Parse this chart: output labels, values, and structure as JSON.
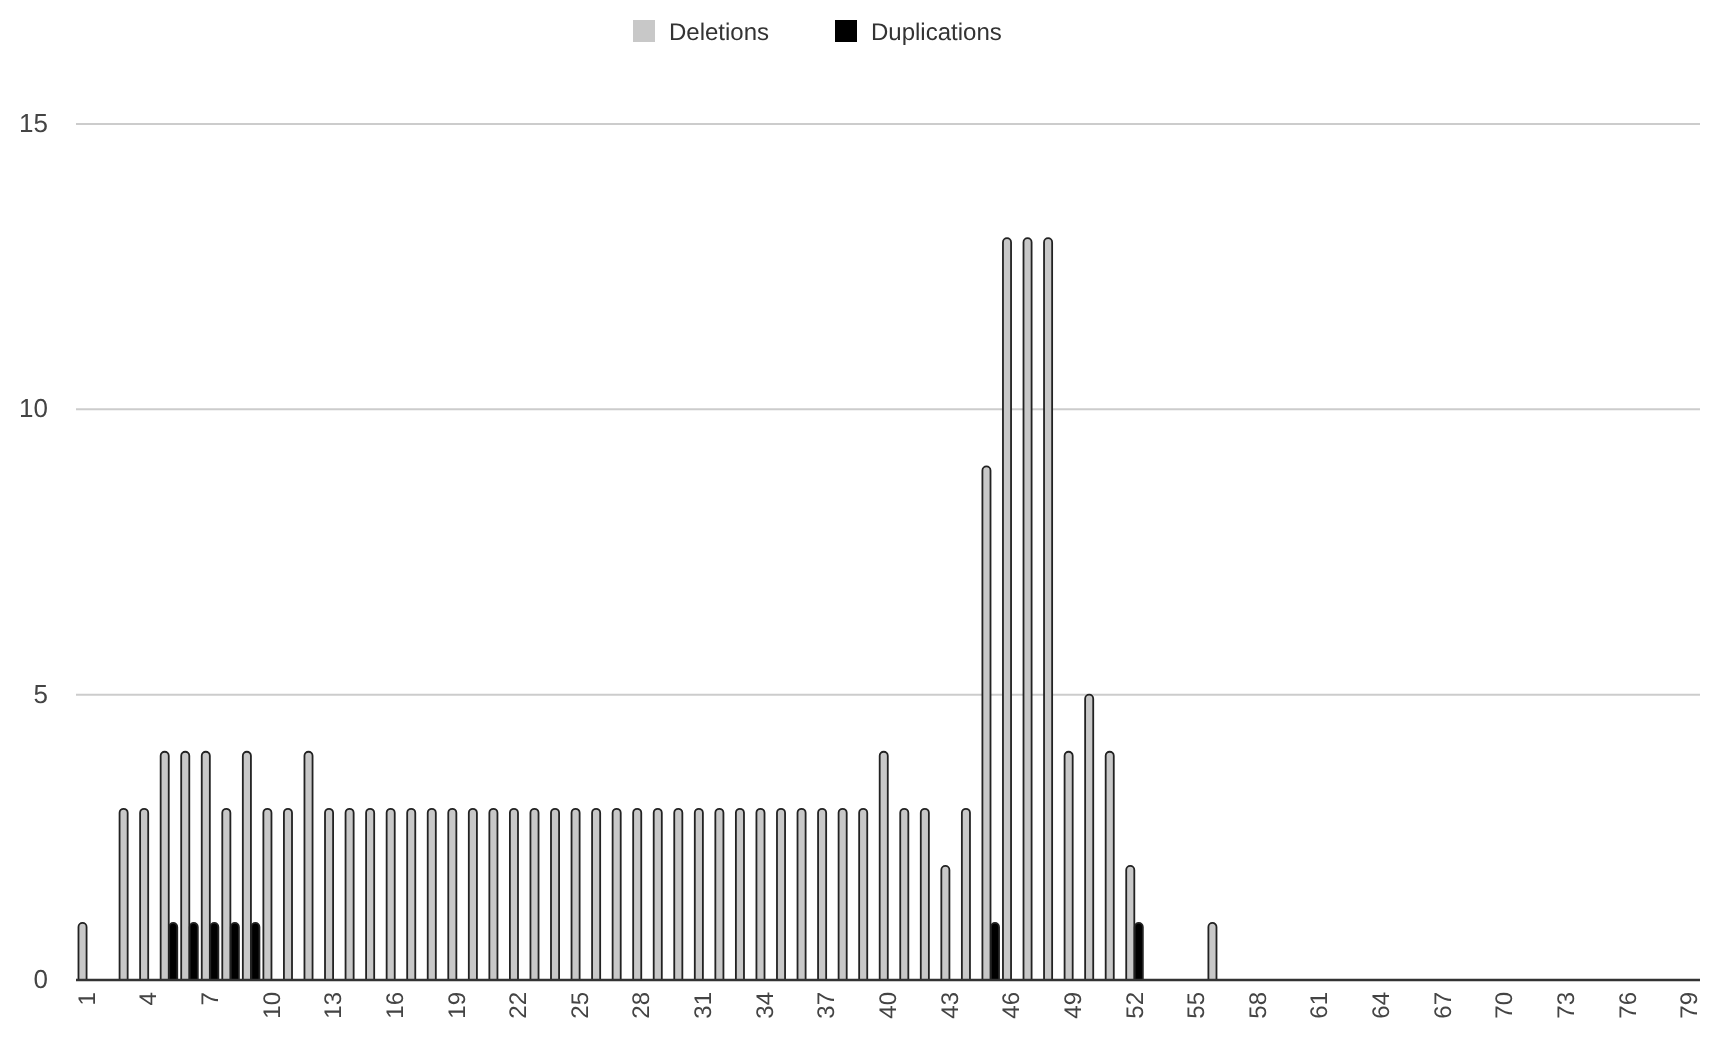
{
  "chart_data": {
    "type": "bar",
    "categories": [
      "1",
      null,
      null,
      "4",
      null,
      null,
      "7",
      null,
      null,
      "10",
      null,
      null,
      "13",
      null,
      null,
      "16",
      null,
      null,
      "19",
      null,
      null,
      "22",
      null,
      null,
      "25",
      null,
      null,
      "28",
      null,
      null,
      "31",
      null,
      null,
      "34",
      null,
      null,
      "37",
      null,
      null,
      "40",
      null,
      null,
      "43",
      null,
      null,
      "46",
      null,
      null,
      "49",
      null,
      null,
      "52",
      null,
      null,
      "55",
      null,
      null,
      "58",
      null,
      null,
      "61",
      null,
      null,
      "64",
      null,
      null,
      "67",
      null,
      null,
      "70",
      null,
      null,
      "73",
      null,
      null,
      "76",
      null,
      null,
      "79"
    ],
    "series": [
      {
        "name": "Deletions",
        "color": "#c8c8c8",
        "values": [
          1,
          0,
          3,
          3,
          4,
          4,
          4,
          3,
          4,
          3,
          3,
          4,
          3,
          3,
          3,
          3,
          3,
          3,
          3,
          3,
          3,
          3,
          3,
          3,
          3,
          3,
          3,
          3,
          3,
          3,
          3,
          3,
          3,
          3,
          3,
          3,
          3,
          3,
          3,
          4,
          3,
          3,
          2,
          3,
          9,
          13,
          13,
          13,
          4,
          5,
          4,
          2,
          0,
          0,
          0,
          1,
          0,
          0,
          0,
          0,
          0,
          0,
          0,
          0,
          0,
          0,
          0,
          0,
          0,
          0,
          0,
          0,
          0,
          0,
          0,
          0,
          0,
          0,
          0
        ]
      },
      {
        "name": "Duplications",
        "color": "#000000",
        "values": [
          0,
          0,
          0,
          0,
          1,
          1,
          1,
          1,
          1,
          0,
          0,
          0,
          0,
          0,
          0,
          0,
          0,
          0,
          0,
          0,
          0,
          0,
          0,
          0,
          0,
          0,
          0,
          0,
          0,
          0,
          0,
          0,
          0,
          0,
          0,
          0,
          0,
          0,
          0,
          0,
          0,
          0,
          0,
          0,
          1,
          0,
          0,
          0,
          0,
          0,
          0,
          1,
          0,
          0,
          0,
          0,
          0,
          0,
          0,
          0,
          0,
          0,
          0,
          0,
          0,
          0,
          0,
          0,
          0,
          0,
          0,
          0,
          0,
          0,
          0,
          0,
          0,
          0,
          0
        ]
      }
    ],
    "ylim": [
      0,
      15
    ],
    "yticks": [
      0,
      5,
      10,
      15
    ],
    "grid": "y",
    "legend": "top"
  }
}
